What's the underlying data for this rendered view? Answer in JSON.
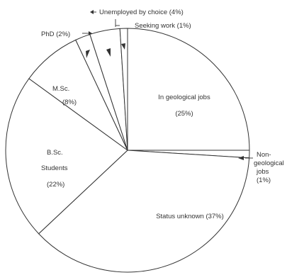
{
  "colors": {
    "ink": "#333333",
    "fill": "#ffffff"
  },
  "chart_data": {
    "type": "pie",
    "title": "",
    "slices": [
      {
        "label": "In geological jobs",
        "percent_text": "(25%)",
        "value": 25
      },
      {
        "label": "Non-geological jobs",
        "percent_text": "(1%)",
        "value": 1
      },
      {
        "label": "Status unknown",
        "percent_text": "(37%)",
        "value": 37
      },
      {
        "label": "B.Sc. Students",
        "percent_text": "(22%)",
        "value": 22
      },
      {
        "label": "M.Sc.",
        "percent_text": "(8%)",
        "value": 8
      },
      {
        "label": "PhD",
        "percent_text": "(2%)",
        "value": 2
      },
      {
        "label": "Unemployed by choice",
        "percent_text": "(4%)",
        "value": 4
      },
      {
        "label": "Seeking work",
        "percent_text": "(1%)",
        "value": 1
      }
    ],
    "label_texts": {
      "geo_jobs_line1": "In geological jobs",
      "geo_jobs_line2": "(25%)",
      "nongeo_line1": "Non-",
      "nongeo_line2": "geological",
      "nongeo_line3": "jobs",
      "nongeo_line4": "(1%)",
      "unknown": "Status unknown (37%)",
      "bsc_line1": "B.Sc.",
      "bsc_line2": "Students",
      "bsc_line3": "(22%)",
      "msc_line1": "M.Sc.",
      "msc_line2": "(8%)",
      "phd": "PhD (2%)",
      "unemployed": "Unemployed by choice (4%)",
      "seeking": "Seeking work (1%)"
    }
  }
}
